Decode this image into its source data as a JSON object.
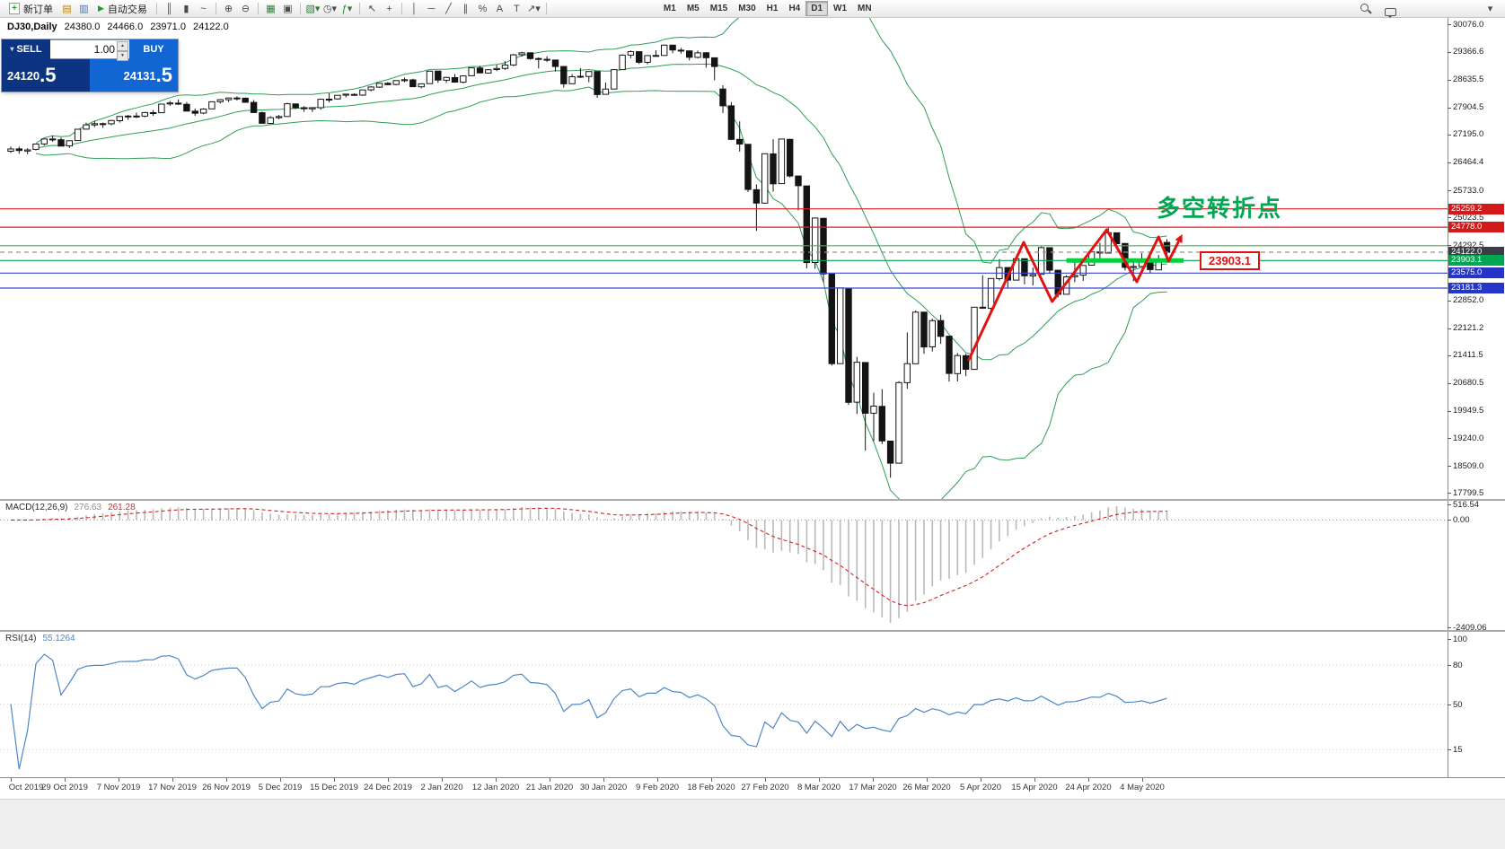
{
  "toolbar": {
    "new_order_label": "新订单",
    "new_order_plus": "+",
    "autotrading_label": "自动交易",
    "autotrading_play": "▶",
    "pre_icons": [
      {
        "name": "terminal-icon",
        "glyph": "▤",
        "color": "#b8860b"
      },
      {
        "name": "navigator-icon",
        "glyph": "▥",
        "color": "#4a6fa5"
      }
    ],
    "groups": [
      {
        "items": [
          {
            "name": "bar-chart-icon",
            "glyph": "║"
          },
          {
            "name": "candlestick-chart-icon",
            "glyph": "▮"
          },
          {
            "name": "line-chart-icon",
            "glyph": "~"
          }
        ]
      },
      {
        "items": [
          {
            "name": "zoom-in-icon",
            "glyph": "⊕"
          },
          {
            "name": "zoom-out-icon",
            "glyph": "⊖"
          }
        ]
      },
      {
        "items": [
          {
            "name": "tile-windows-icon",
            "glyph": "▦",
            "color": "#2e7d32"
          },
          {
            "name": "data-window-icon",
            "glyph": "▣"
          }
        ]
      },
      {
        "items": [
          {
            "name": "new-chart-icon",
            "glyph": "▧▾",
            "color": "#2e7d32"
          },
          {
            "name": "profiles-icon",
            "glyph": "◷▾"
          },
          {
            "name": "indicators-icon",
            "glyph": "ƒ▾",
            "color": "#2e7d32"
          }
        ]
      },
      {
        "items": [
          {
            "name": "cursor-icon",
            "glyph": "↖"
          },
          {
            "name": "crosshair-icon",
            "glyph": "+"
          }
        ]
      },
      {
        "items": [
          {
            "name": "vertical-line-icon",
            "glyph": "│"
          },
          {
            "name": "horizontal-line-icon",
            "glyph": "─"
          },
          {
            "name": "trendline-icon",
            "glyph": "╱"
          },
          {
            "name": "channel-icon",
            "glyph": "∥"
          },
          {
            "name": "fibonacci-icon",
            "glyph": "%"
          },
          {
            "name": "text-icon",
            "glyph": "A"
          },
          {
            "name": "label-icon",
            "glyph": "T"
          },
          {
            "name": "arrows-icon",
            "glyph": "↗▾"
          }
        ]
      }
    ],
    "timeframes": [
      "M1",
      "M5",
      "M15",
      "M30",
      "H1",
      "H4",
      "D1",
      "W1",
      "MN"
    ],
    "active_timeframe": "D1"
  },
  "chart_header": {
    "symbol_period": "DJ30,Daily",
    "open": "24380.0",
    "high": "24466.0",
    "low": "23971.0",
    "close": "24122.0"
  },
  "trade_panel": {
    "collapse_arrow": "▾",
    "sell_label": "SELL",
    "buy_label": "BUY",
    "volume": "1.00",
    "spinner_up": "▲",
    "spinner_down": "▼",
    "sell_price": "24120",
    "sell_price_big": ".5",
    "buy_price": "24131",
    "buy_price_big": ".5"
  },
  "annotations": {
    "turning_point": "多空转折点",
    "level_box": "23903.1"
  },
  "price_axis": {
    "ticks": [
      30076.0,
      29366.6,
      28635.5,
      27904.5,
      27195.0,
      26464.4,
      25733.0,
      25023.5,
      24292.5,
      22852.0,
      22121.2,
      21411.5,
      20680.5,
      19949.5,
      19240.0,
      18509.0,
      17799.5
    ],
    "levels": [
      {
        "label": "25259.2",
        "value": 25259.2,
        "bg": "#d21a1a"
      },
      {
        "label": "24778.0",
        "value": 24778.0,
        "bg": "#d21a1a"
      },
      {
        "label": "24122.0",
        "value": 24122.0,
        "bg": "#3c3c46"
      },
      {
        "label": "23903.1",
        "value": 23903.1,
        "bg": "#00a651"
      },
      {
        "label": "23575.0",
        "value": 23575.0,
        "bg": "#2535c8"
      },
      {
        "label": "23181.3",
        "value": 23181.3,
        "bg": "#2535c8"
      }
    ]
  },
  "macd": {
    "label": "MACD(12,26,9)",
    "value": "276.63",
    "signal": "261.28",
    "axis": [
      516.54,
      0.0,
      -2409.06
    ]
  },
  "rsi": {
    "label": "RSI(14)",
    "value": "55.1264",
    "axis": [
      100,
      80,
      50,
      15
    ]
  },
  "date_axis": [
    "Oct 2019",
    "29 Oct 2019",
    "7 Nov 2019",
    "17 Nov 2019",
    "26 Nov 2019",
    "5 Dec 2019",
    "15 Dec 2019",
    "24 Dec 2019",
    "2 Jan 2020",
    "12 Jan 2020",
    "21 Jan 2020",
    "30 Jan 2020",
    "9 Feb 2020",
    "18 Feb 2020",
    "27 Feb 2020",
    "8 Mar 2020",
    "17 Mar 2020",
    "26 Mar 2020",
    "5 Apr 2020",
    "15 Apr 2020",
    "24 Apr 2020",
    "4 May 2020"
  ],
  "chart_data": {
    "type": "candlestick",
    "symbol": "DJ30",
    "period": "Daily",
    "last_ohlc": {
      "open": 24380.0,
      "high": 24466.0,
      "low": 23971.0,
      "close": 24122.0
    },
    "y_axis_range": [
      17650,
      30264
    ],
    "candles": [
      [
        26770,
        26895,
        26725,
        26828
      ],
      [
        26830,
        26890,
        26705,
        26788
      ],
      [
        26775,
        26850,
        26690,
        26805
      ],
      [
        26820,
        26970,
        26790,
        26958
      ],
      [
        26960,
        27095,
        26920,
        27090
      ],
      [
        27090,
        27180,
        27020,
        27071
      ],
      [
        27070,
        27130,
        26918,
        26903
      ],
      [
        26910,
        27055,
        26855,
        27046
      ],
      [
        27050,
        27347,
        27040,
        27347
      ],
      [
        27350,
        27517,
        27340,
        27462
      ],
      [
        27460,
        27560,
        27400,
        27492
      ],
      [
        27490,
        27520,
        27385,
        27492
      ],
      [
        27490,
        27590,
        27450,
        27575
      ],
      [
        27570,
        27690,
        27520,
        27681
      ],
      [
        27680,
        27720,
        27590,
        27691
      ],
      [
        27690,
        27780,
        27640,
        27691
      ],
      [
        27690,
        27800,
        27660,
        27783
      ],
      [
        27780,
        27850,
        27700,
        27782
      ],
      [
        27780,
        28005,
        27770,
        28005
      ],
      [
        28010,
        28090,
        27960,
        28036
      ],
      [
        28030,
        28120,
        27980,
        28004
      ],
      [
        28000,
        28060,
        27820,
        27821
      ],
      [
        27820,
        27890,
        27700,
        27766
      ],
      [
        27770,
        27900,
        27740,
        27876
      ],
      [
        27880,
        28070,
        27870,
        28066
      ],
      [
        28070,
        28140,
        28020,
        28121
      ],
      [
        28120,
        28175,
        28060,
        28164
      ],
      [
        28160,
        28210,
        28100,
        28164
      ],
      [
        28160,
        28180,
        28040,
        28051
      ],
      [
        28050,
        28110,
        27770,
        27783
      ],
      [
        27780,
        27810,
        27520,
        27503
      ],
      [
        27500,
        27690,
        27480,
        27650
      ],
      [
        27650,
        27720,
        27610,
        27678
      ],
      [
        27680,
        28040,
        27675,
        28015
      ],
      [
        28010,
        28020,
        27880,
        27910
      ],
      [
        27910,
        27950,
        27800,
        27882
      ],
      [
        27880,
        27930,
        27800,
        27911
      ],
      [
        27910,
        28140,
        27860,
        28132
      ],
      [
        28130,
        28290,
        28050,
        28135
      ],
      [
        28140,
        28240,
        28125,
        28235
      ],
      [
        28240,
        28270,
        28180,
        28267
      ],
      [
        28260,
        28290,
        28220,
        28239
      ],
      [
        28240,
        28380,
        28220,
        28376
      ],
      [
        28380,
        28470,
        28340,
        28455
      ],
      [
        28450,
        28560,
        28430,
        28551
      ],
      [
        28550,
        28580,
        28500,
        28515
      ],
      [
        28520,
        28620,
        28500,
        28621
      ],
      [
        28620,
        28700,
        28580,
        28645
      ],
      [
        28640,
        28670,
        28450,
        28462
      ],
      [
        28460,
        28547,
        28420,
        28538
      ],
      [
        28540,
        28872,
        28535,
        28868
      ],
      [
        28870,
        28875,
        28560,
        28634
      ],
      [
        28630,
        28720,
        28560,
        28703
      ],
      [
        28700,
        28790,
        28565,
        28583
      ],
      [
        28580,
        28760,
        28550,
        28745
      ],
      [
        28750,
        28960,
        28740,
        28956
      ],
      [
        28950,
        29010,
        28820,
        28823
      ],
      [
        28820,
        28920,
        28805,
        28907
      ],
      [
        28910,
        29030,
        28870,
        28939
      ],
      [
        28940,
        29130,
        28900,
        29030
      ],
      [
        29030,
        29320,
        29000,
        29297
      ],
      [
        29300,
        29380,
        29250,
        29348
      ],
      [
        29350,
        29360,
        29170,
        29196
      ],
      [
        29200,
        29230,
        28940,
        29186
      ],
      [
        29180,
        29260,
        29110,
        29160
      ],
      [
        29160,
        29170,
        28860,
        28990
      ],
      [
        28990,
        29000,
        28440,
        28536
      ],
      [
        28540,
        28790,
        28530,
        28723
      ],
      [
        28720,
        28950,
        28690,
        28734
      ],
      [
        28730,
        28860,
        28580,
        28859
      ],
      [
        28860,
        28865,
        28170,
        28256
      ],
      [
        28260,
        28570,
        28250,
        28400
      ],
      [
        28400,
        28910,
        28395,
        28908
      ],
      [
        28910,
        29310,
        28900,
        29291
      ],
      [
        29290,
        29410,
        29210,
        29380
      ],
      [
        29380,
        29390,
        29056,
        29103
      ],
      [
        29100,
        29280,
        29050,
        29277
      ],
      [
        29280,
        29420,
        29250,
        29276
      ],
      [
        29280,
        29568,
        29275,
        29551
      ],
      [
        29550,
        29560,
        29340,
        29423
      ],
      [
        29420,
        29480,
        29330,
        29398
      ],
      [
        29400,
        29410,
        29150,
        29233
      ],
      [
        29230,
        29409,
        29200,
        29348
      ],
      [
        29350,
        29370,
        28960,
        29220
      ],
      [
        29220,
        29225,
        28630,
        28992
      ],
      [
        28400,
        28500,
        27770,
        27961
      ],
      [
        27960,
        28060,
        27060,
        27081
      ],
      [
        27080,
        27550,
        26760,
        26958
      ],
      [
        26950,
        26955,
        25700,
        25767
      ],
      [
        25760,
        25900,
        24680,
        25409
      ],
      [
        25410,
        26706,
        25390,
        26703
      ],
      [
        26700,
        27085,
        25710,
        25917
      ],
      [
        25920,
        27090,
        25915,
        27090
      ],
      [
        27080,
        27100,
        26080,
        26121
      ],
      [
        26120,
        26125,
        25220,
        25865
      ],
      [
        25860,
        25865,
        23700,
        23851
      ],
      [
        23850,
        25020,
        23690,
        25018
      ],
      [
        25010,
        25025,
        23330,
        23553
      ],
      [
        23550,
        23555,
        21150,
        21200
      ],
      [
        21200,
        23190,
        21195,
        23185
      ],
      [
        23180,
        23185,
        20120,
        20188
      ],
      [
        20190,
        21380,
        19880,
        21237
      ],
      [
        21230,
        21235,
        18920,
        19898
      ],
      [
        19900,
        20440,
        19170,
        20087
      ],
      [
        20080,
        20530,
        19090,
        19173
      ],
      [
        19170,
        19175,
        18210,
        18591
      ],
      [
        18590,
        20740,
        18585,
        20704
      ],
      [
        20700,
        22020,
        20540,
        21200
      ],
      [
        21200,
        22595,
        21195,
        22552
      ],
      [
        22550,
        22555,
        21460,
        21636
      ],
      [
        21640,
        22380,
        21520,
        22327
      ],
      [
        22330,
        22480,
        21720,
        21917
      ],
      [
        21920,
        21925,
        20730,
        20943
      ],
      [
        20940,
        21480,
        20735,
        21413
      ],
      [
        21410,
        21460,
        20870,
        21052
      ],
      [
        21050,
        22680,
        21045,
        22680
      ],
      [
        22680,
        23520,
        22635,
        22654
      ],
      [
        22650,
        23440,
        22545,
        23434
      ],
      [
        23430,
        23940,
        23380,
        23719
      ],
      [
        23720,
        23725,
        23190,
        23390
      ],
      [
        23390,
        24010,
        23385,
        23950
      ],
      [
        23950,
        23955,
        23280,
        23504
      ],
      [
        23500,
        23720,
        23250,
        23538
      ],
      [
        23540,
        24270,
        23535,
        24242
      ],
      [
        24240,
        24245,
        23560,
        23650
      ],
      [
        23650,
        23655,
        22940,
        23018
      ],
      [
        23020,
        23520,
        23015,
        23476
      ],
      [
        23480,
        23885,
        23335,
        23515
      ],
      [
        23520,
        23780,
        23370,
        23775
      ],
      [
        23780,
        24180,
        23775,
        24134
      ],
      [
        24130,
        24370,
        23960,
        24102
      ],
      [
        24100,
        24765,
        24095,
        24634
      ],
      [
        24630,
        24635,
        24235,
        24346
      ],
      [
        24350,
        24355,
        23645,
        23724
      ],
      [
        23720,
        23870,
        23360,
        23749
      ],
      [
        23750,
        24095,
        23745,
        23883
      ],
      [
        23880,
        24010,
        23570,
        23665
      ],
      [
        23660,
        24050,
        23655,
        23876
      ],
      [
        24380,
        24466,
        23971,
        24122
      ]
    ],
    "overlays": {
      "bollinger": {
        "period": 20,
        "deviation": 2,
        "color": "#2f9e55"
      }
    },
    "horizontal_lines": [
      {
        "value": 25259.2,
        "color": "#e02020"
      },
      {
        "value": 24778.0,
        "color": "#e02020"
      },
      {
        "value": 24292.5,
        "color": "#3cb054"
      },
      {
        "value": 24122.0,
        "color": "#909090",
        "dashed": true
      },
      {
        "value": 23903.1,
        "color": "#00a651"
      },
      {
        "value": 23575.0,
        "color": "#3a46d4"
      },
      {
        "value": 23181.3,
        "color": "#3a46d4"
      }
    ],
    "support_segment": {
      "value": 23903.1,
      "from_index": 126,
      "to_index": 140,
      "color": "#00d03c",
      "width": 5
    },
    "zigzag": {
      "color": "#e31212",
      "points": [
        [
          114.3,
          21276
        ],
        [
          120.9,
          24381
        ],
        [
          124.3,
          22828
        ],
        [
          130.8,
          24711
        ],
        [
          134.4,
          23346
        ],
        [
          137.0,
          24522
        ],
        [
          138.2,
          23887
        ],
        [
          139.4,
          24405
        ]
      ]
    }
  }
}
